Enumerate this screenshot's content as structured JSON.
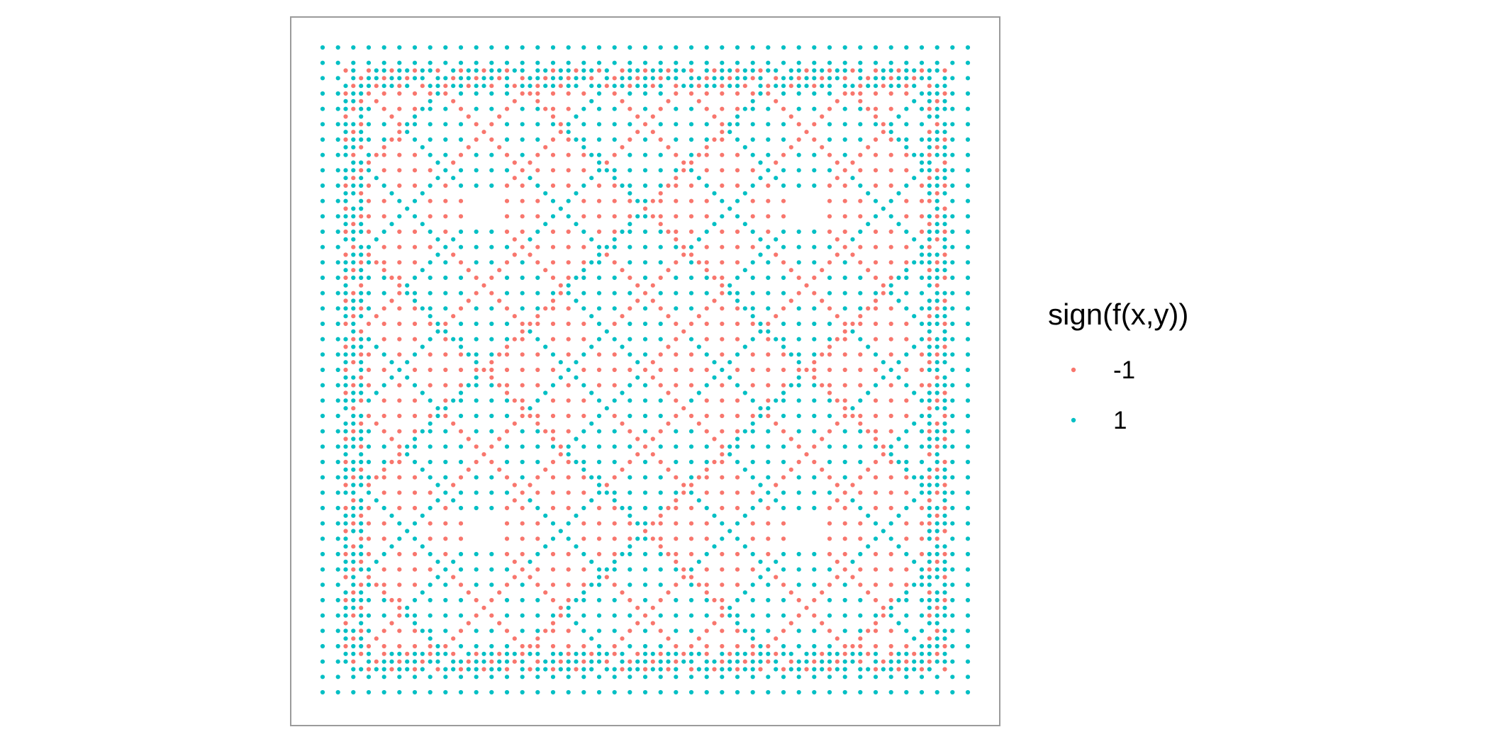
{
  "chart_data": {
    "type": "scatter",
    "title": "",
    "xlabel": "",
    "ylabel": "",
    "axes_visible": false,
    "grid": false,
    "panel_border": true,
    "legend": {
      "title": "sign(f(x,y))",
      "placement": "right",
      "entries": [
        {
          "label": "-1",
          "color": "#F8766D"
        },
        {
          "label": "1",
          "color": "#00BFC4"
        }
      ]
    },
    "series": [
      {
        "name": "-1",
        "color": "#F8766D"
      },
      {
        "name": "1",
        "color": "#00BFC4"
      }
    ],
    "grid_points": 85,
    "pattern": "symmetric square quilt of diamond and hourglass motifs; dense colored bands along diagonals, sparse interior grid points, blank regions where no points are drawn"
  }
}
